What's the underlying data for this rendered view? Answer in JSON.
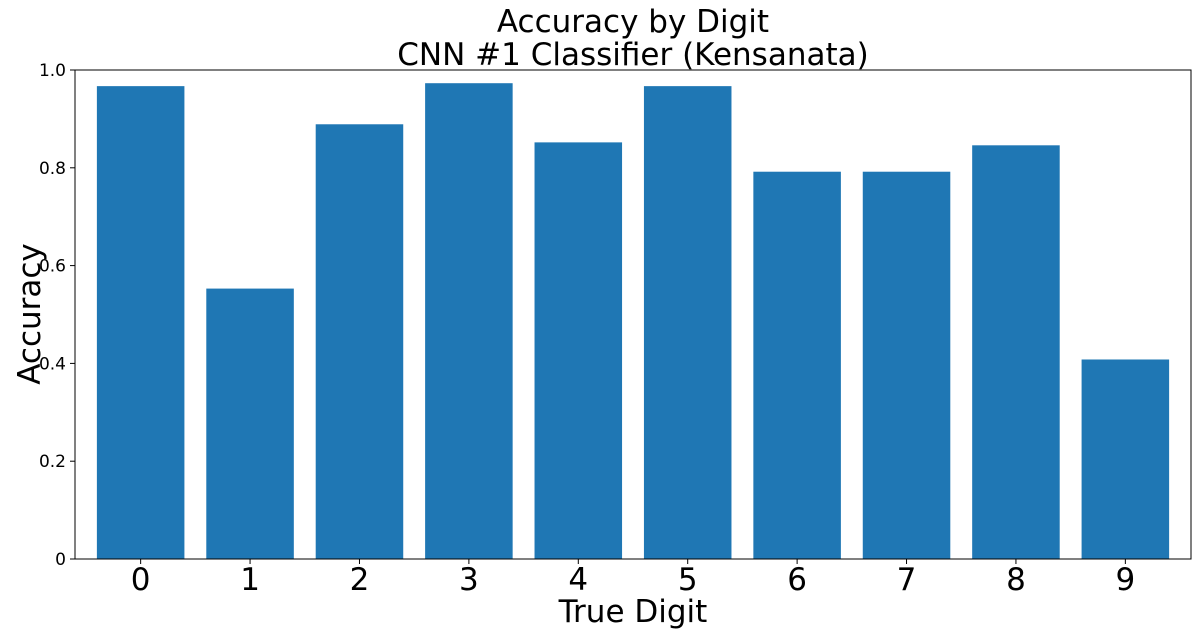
{
  "chart_data": {
    "type": "bar",
    "title": "Accuracy by Digit",
    "subtitle": "CNN #1 Classifier (Kensanata)",
    "xlabel": "True Digit",
    "ylabel": "Accuracy",
    "categories": [
      "0",
      "1",
      "2",
      "3",
      "4",
      "5",
      "6",
      "7",
      "8",
      "9"
    ],
    "values": [
      0.967,
      0.553,
      0.889,
      0.973,
      0.852,
      0.967,
      0.792,
      0.792,
      0.846,
      0.408
    ],
    "ylim": [
      0,
      1.0
    ],
    "yticks": [
      0,
      0.2,
      0.4,
      0.6,
      0.8,
      1.0
    ],
    "ytick_labels": [
      "0",
      "0.2",
      "0.4",
      "0.6",
      "0.8",
      "1.0"
    ],
    "bar_color": "#1f77b4",
    "grid": false,
    "legend": "none"
  }
}
